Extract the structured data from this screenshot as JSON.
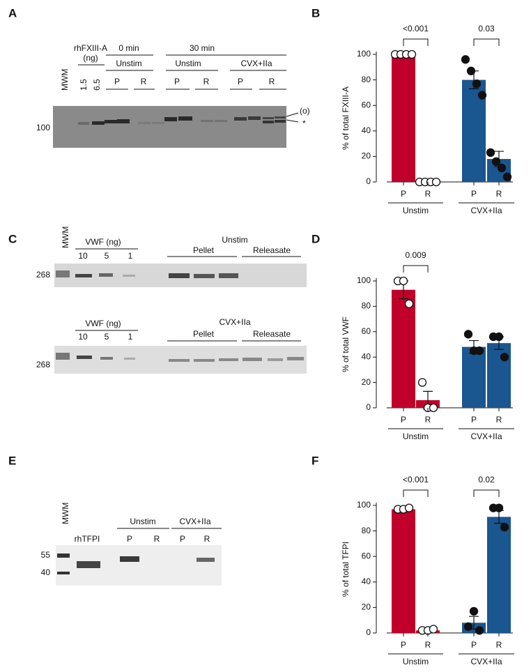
{
  "panels": [
    "A",
    "B",
    "C",
    "D",
    "E",
    "F"
  ],
  "blot_a": {
    "marker": "MWM",
    "standard": "rhFXIII-A",
    "standard_unit": "(ng)",
    "amounts": [
      "1.5",
      "6.5"
    ],
    "time0": "0 min",
    "time0_group": "Unstim",
    "time30": "30 min",
    "groups": [
      "Unstim",
      "CVX+IIa"
    ],
    "lanes": [
      "P",
      "R"
    ],
    "mw": "100",
    "band_labels": [
      "(o)",
      "*"
    ]
  },
  "blot_c": {
    "marker": "MWM",
    "standard": "VWF (ng)",
    "amounts": [
      "10",
      "5",
      "1"
    ],
    "conditions": [
      "Unstim",
      "CVX+IIa"
    ],
    "fractions": [
      "Pellet",
      "Releasate"
    ],
    "mw": "268"
  },
  "blot_e": {
    "marker": "MWM",
    "standard": "rhTFPI",
    "groups": [
      "Unstim",
      "CVX+IIa"
    ],
    "lanes": [
      "P",
      "R"
    ],
    "mw": [
      "55",
      "40"
    ]
  },
  "chart_data": [
    {
      "type": "bar",
      "ylabel": "% of total FXIII-A",
      "categories": [
        "P",
        "R",
        "P",
        "R"
      ],
      "groups": [
        "Unstim",
        "CVX+IIa"
      ],
      "values": [
        100,
        0.5,
        80,
        18
      ],
      "errors": [
        0.5,
        0.3,
        7,
        6
      ],
      "points": [
        [
          100,
          100,
          100,
          100
        ],
        [
          0,
          0,
          0,
          0
        ],
        [
          96,
          87,
          77,
          68
        ],
        [
          23,
          16,
          11,
          4
        ]
      ],
      "colors": [
        "#c0002a",
        "#c0002a",
        "#1a5690",
        "#1a5690"
      ],
      "point_styles": [
        "open",
        "open",
        "filled",
        "filled"
      ],
      "p_values": [
        "<0.001",
        "0.03"
      ],
      "ylim": [
        0,
        100
      ],
      "yticks": [
        0,
        20,
        40,
        60,
        80,
        100
      ]
    },
    {
      "type": "bar",
      "ylabel": "% of total VWF",
      "categories": [
        "P",
        "R",
        "P",
        "R"
      ],
      "groups": [
        "Unstim",
        "CVX+IIa"
      ],
      "values": [
        93,
        6,
        48,
        51
      ],
      "errors": [
        7,
        7,
        5,
        5
      ],
      "points": [
        [
          100,
          100,
          82
        ],
        [
          20,
          0,
          0
        ],
        [
          58,
          45,
          45
        ],
        [
          56,
          56,
          40
        ]
      ],
      "colors": [
        "#c0002a",
        "#c0002a",
        "#1a5690",
        "#1a5690"
      ],
      "point_styles": [
        "open",
        "open",
        "filled",
        "filled"
      ],
      "p_values": [
        "0.009",
        null
      ],
      "ylim": [
        0,
        100
      ],
      "yticks": [
        0,
        20,
        40,
        60,
        80,
        100
      ]
    },
    {
      "type": "bar",
      "ylabel": "% of total TFPI",
      "categories": [
        "P",
        "R",
        "P",
        "R"
      ],
      "groups": [
        "Unstim",
        "CVX+IIa"
      ],
      "values": [
        97,
        2,
        8,
        91
      ],
      "errors": [
        1,
        1,
        5,
        5
      ],
      "points": [
        [
          97,
          97,
          98
        ],
        [
          2,
          2,
          3
        ],
        [
          5,
          17,
          2
        ],
        [
          98,
          98,
          83
        ]
      ],
      "colors": [
        "#c0002a",
        "#c0002a",
        "#1a5690",
        "#1a5690"
      ],
      "point_styles": [
        "open",
        "open",
        "filled",
        "filled"
      ],
      "p_values": [
        "<0.001",
        "0.02"
      ],
      "ylim": [
        0,
        100
      ],
      "yticks": [
        0,
        20,
        40,
        60,
        80,
        100
      ]
    }
  ]
}
